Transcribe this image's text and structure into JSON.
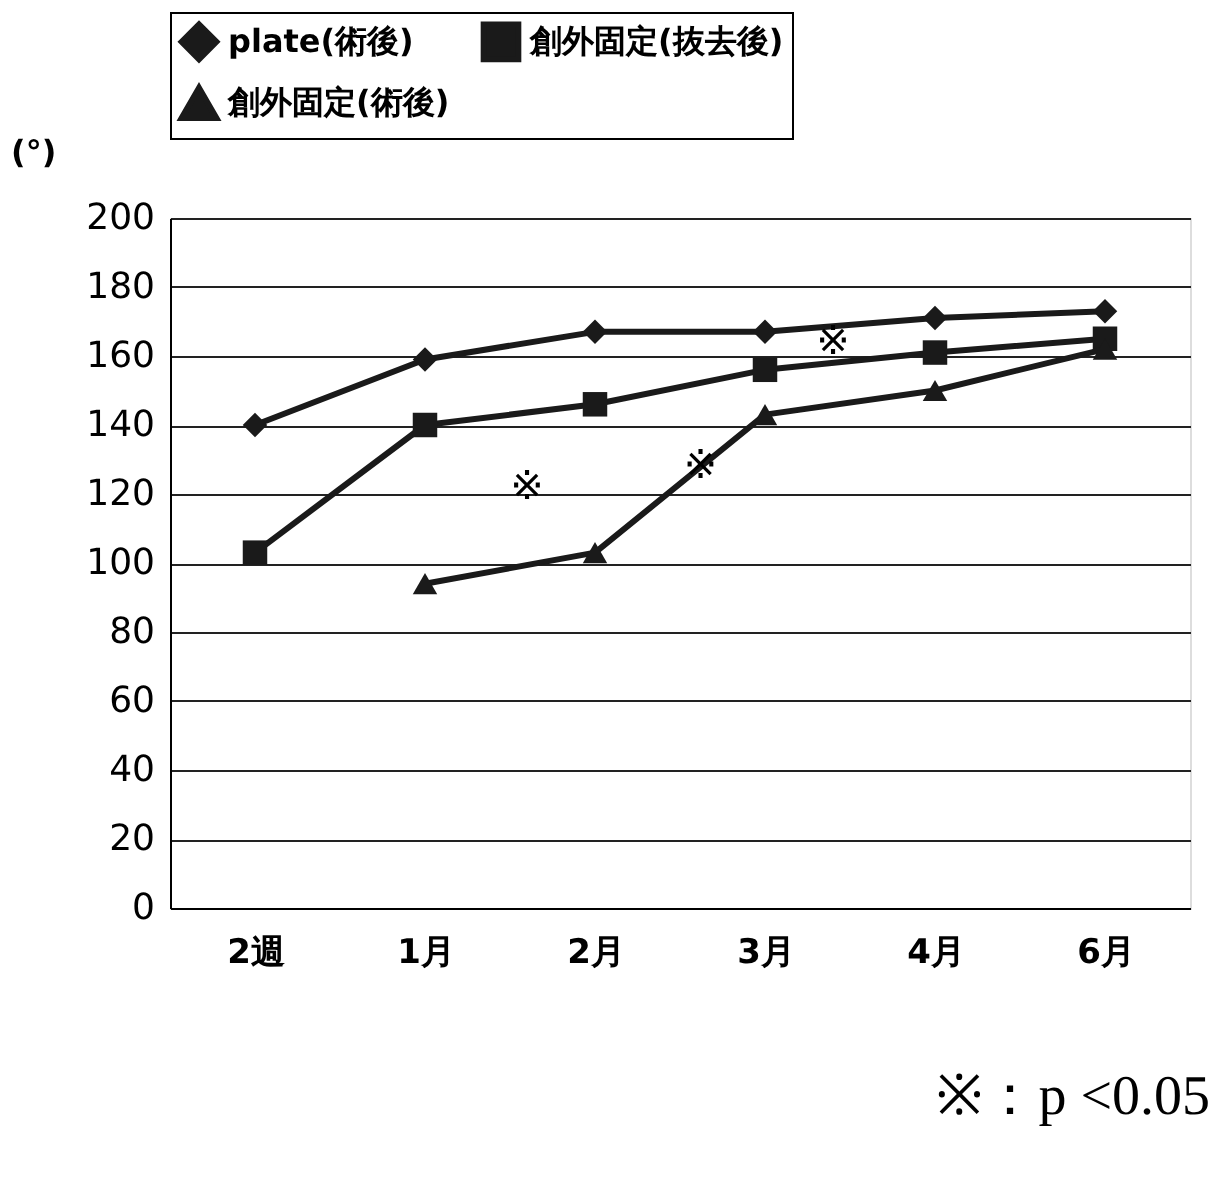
{
  "chart_data": {
    "type": "line",
    "ylabel": "(°)",
    "categories": [
      "2週",
      "1月",
      "2月",
      "3月",
      "4月",
      "6月"
    ],
    "series": [
      {
        "name": "plate(術後)",
        "color": "#1a1a1a",
        "marker": "diamond",
        "values": [
          140,
          159,
          167,
          167,
          171,
          173
        ]
      },
      {
        "name": "創外固定(抜去後)",
        "color": "#1a1a1a",
        "marker": "square",
        "values": [
          103,
          140,
          146,
          156,
          161,
          165
        ]
      },
      {
        "name": "創外固定(術後)",
        "color": "#1a1a1a",
        "marker": "triangle",
        "values": [
          null,
          94,
          103,
          143,
          150,
          162
        ]
      }
    ],
    "ylim": [
      0,
      200
    ],
    "yticks": [
      0,
      20,
      40,
      60,
      80,
      100,
      120,
      140,
      160,
      180,
      200
    ],
    "grid": "y",
    "legend": "top",
    "annotations": [
      "※",
      "※",
      "※",
      "※：p <0.05"
    ]
  }
}
